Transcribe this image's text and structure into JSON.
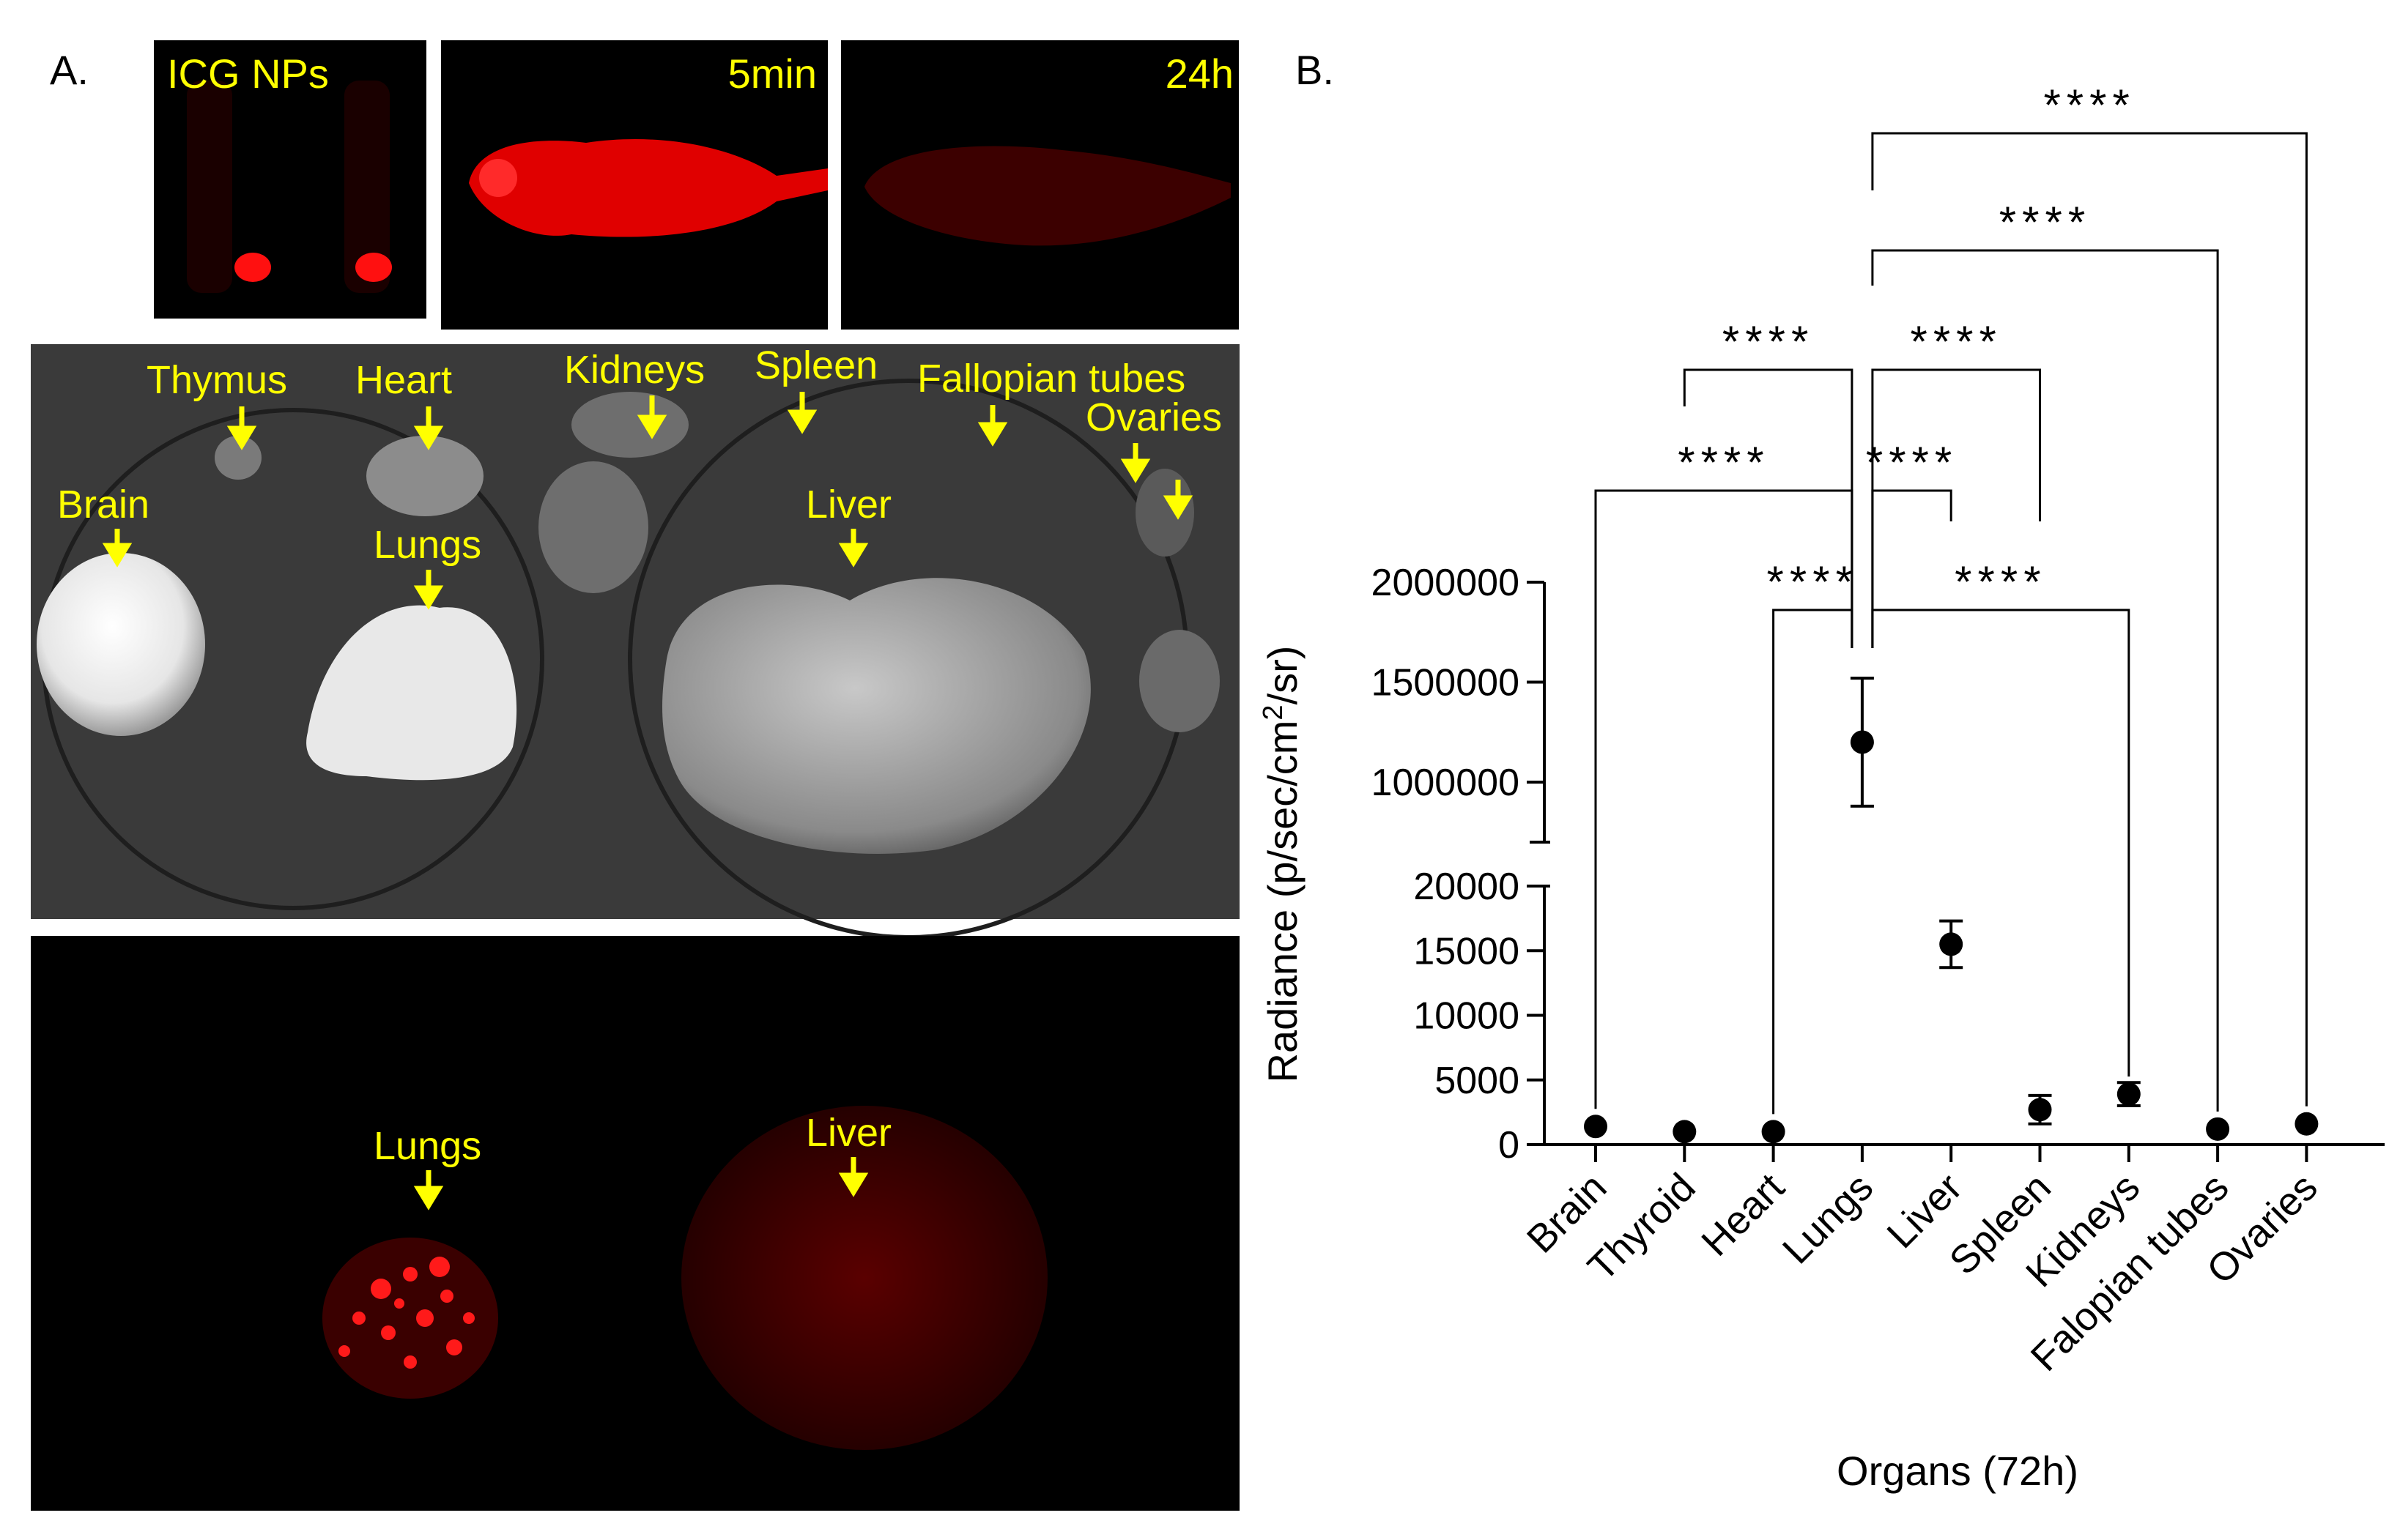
{
  "panels": {
    "a_label": "A.",
    "b_label": "B."
  },
  "panel_a": {
    "top_labels": [
      "ICG NPs",
      "5min",
      "24h"
    ],
    "organ_labels": [
      "Thymus",
      "Heart",
      "Kidneys",
      "Spleen",
      "Fallopian tubes",
      "Ovaries",
      "Brain",
      "Lungs",
      "Liver"
    ],
    "fluor_labels": [
      "Lungs",
      "Liver"
    ]
  },
  "colors": {
    "label_yellow": "#ffff00",
    "fluor_red": "#ff1a1a",
    "marker": "#000000",
    "axis": "#000000"
  },
  "chart_data": {
    "type": "scatter",
    "xlabel": "Organs (72h)",
    "ylabel": "Radiance (p/sec/cm²/sr)",
    "categories": [
      "Brain",
      "Thyroid",
      "Heart",
      "Lungs",
      "Liver",
      "Spleen",
      "Kidneys",
      "Falopian tubes",
      "Ovaries"
    ],
    "values": [
      1400,
      1000,
      1000,
      1200000,
      15500,
      2700,
      3900,
      1200,
      1600
    ],
    "errors": [
      0,
      0,
      0,
      320000,
      1800,
      1100,
      900,
      0,
      0
    ],
    "y_axis_broken": true,
    "y_lower": {
      "range": [
        0,
        20000
      ],
      "ticks": [
        "0",
        "5000",
        "10000",
        "15000",
        "20000"
      ]
    },
    "y_upper": {
      "range": [
        700000,
        2000000
      ],
      "ticks": [
        "1000000",
        "1500000",
        "2000000"
      ]
    },
    "significance": {
      "label": "****",
      "comparisons": [
        [
          "Lungs",
          "Ovaries"
        ],
        [
          "Lungs",
          "Falopian tubes"
        ],
        [
          "Thyroid",
          "Lungs"
        ],
        [
          "Lungs",
          "Spleen"
        ],
        [
          "Brain",
          "Lungs"
        ],
        [
          "Lungs",
          "Liver"
        ],
        [
          "Heart",
          "Lungs"
        ],
        [
          "Lungs",
          "Kidneys"
        ]
      ]
    }
  }
}
